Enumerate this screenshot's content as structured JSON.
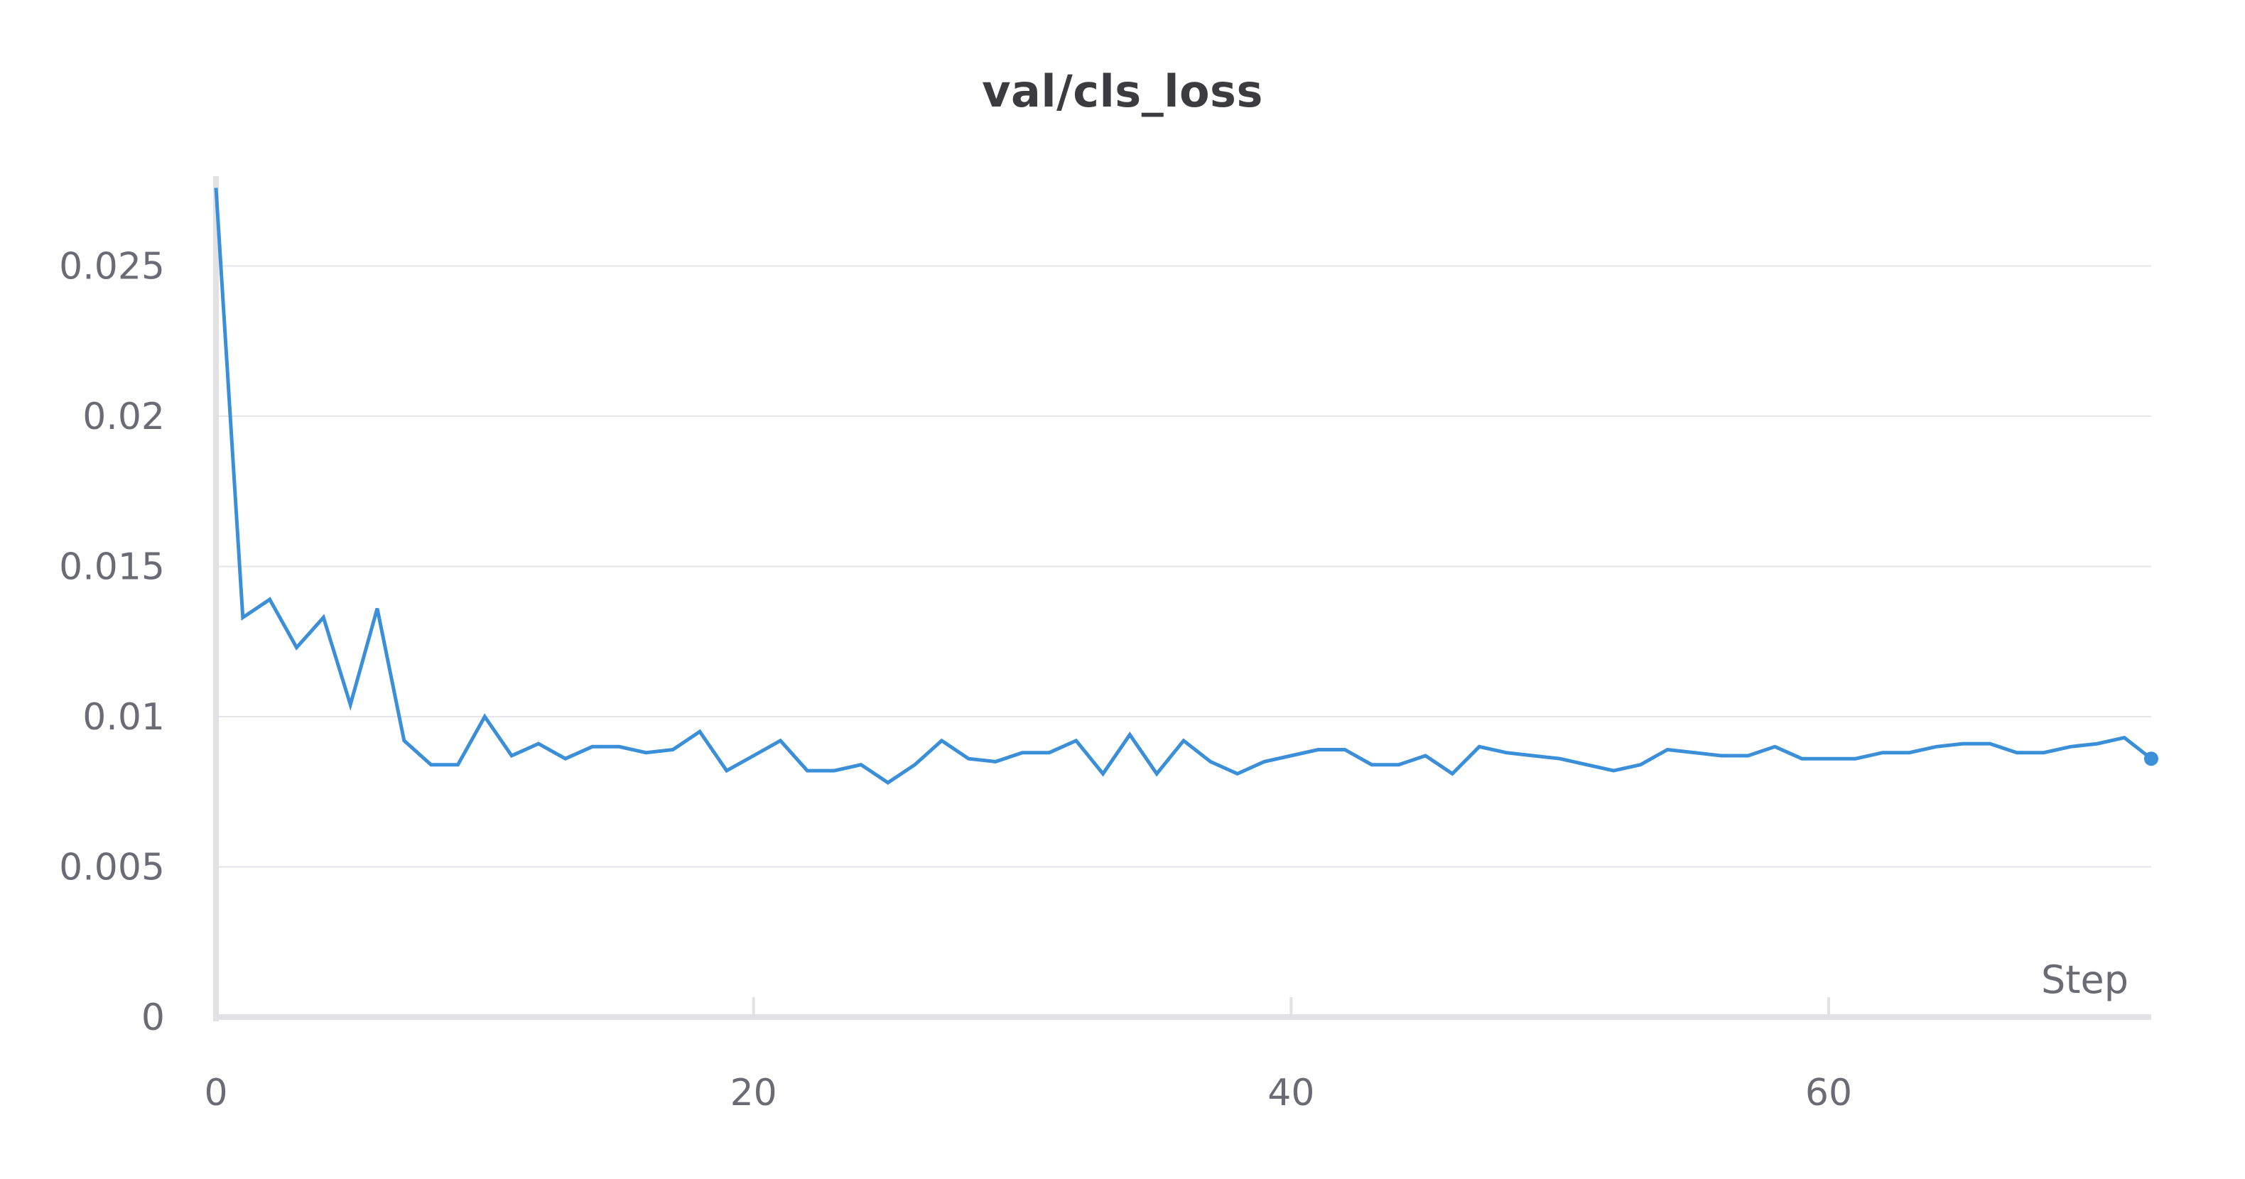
{
  "chart_data": {
    "type": "line",
    "title": "val/cls_loss",
    "xlabel": "Step",
    "ylabel": "",
    "xlim": [
      0,
      72
    ],
    "ylim": [
      0,
      0.0278
    ],
    "x_ticks": [
      0,
      20,
      40,
      60
    ],
    "x_tick_labels": [
      "0",
      "20",
      "40",
      "60"
    ],
    "y_ticks": [
      0,
      0.005,
      0.01,
      0.015,
      0.02,
      0.025
    ],
    "y_tick_labels": [
      "0",
      "0.005",
      "0.01",
      "0.015",
      "0.02",
      "0.025"
    ],
    "grid": true,
    "legend": "none",
    "line_color": "#3b8fd9",
    "grid_color": "#e6e6ea",
    "axis_color": "#e2e2e6",
    "series": [
      {
        "x": [
          0,
          1,
          2,
          3,
          4,
          5,
          6,
          7,
          8,
          9,
          10,
          11,
          12,
          13,
          14,
          15,
          16,
          17,
          18,
          19,
          20,
          21,
          22,
          23,
          24,
          25,
          26,
          27,
          28,
          29,
          30,
          31,
          32,
          33,
          34,
          35,
          36,
          37,
          38,
          39,
          40,
          41,
          42,
          43,
          44,
          45,
          46,
          47,
          48,
          49,
          50,
          51,
          52,
          53,
          54,
          55,
          56,
          57,
          58,
          59,
          60,
          61,
          62,
          63,
          64,
          65,
          66,
          67,
          68,
          69,
          70,
          71,
          72
        ],
        "y": [
          0.0276,
          0.0133,
          0.0139,
          0.0123,
          0.0133,
          0.0104,
          0.0136,
          0.0092,
          0.0084,
          0.0084,
          0.01,
          0.0087,
          0.0091,
          0.0086,
          0.009,
          0.009,
          0.0088,
          0.0089,
          0.0095,
          0.0082,
          0.0087,
          0.0092,
          0.0082,
          0.0082,
          0.0084,
          0.0078,
          0.0084,
          0.0092,
          0.0086,
          0.0085,
          0.0088,
          0.0088,
          0.0092,
          0.0081,
          0.0094,
          0.0081,
          0.0092,
          0.0085,
          0.0081,
          0.0085,
          0.0087,
          0.0089,
          0.0089,
          0.0084,
          0.0084,
          0.0087,
          0.0081,
          0.009,
          0.0088,
          0.0087,
          0.0086,
          0.0084,
          0.0082,
          0.0084,
          0.0089,
          0.0088,
          0.0087,
          0.0087,
          0.009,
          0.0086,
          0.0086,
          0.0086,
          0.0088,
          0.0088,
          0.009,
          0.0091,
          0.0091,
          0.0088,
          0.0088,
          0.009,
          0.0091,
          0.0093,
          0.0086
        ]
      }
    ]
  }
}
